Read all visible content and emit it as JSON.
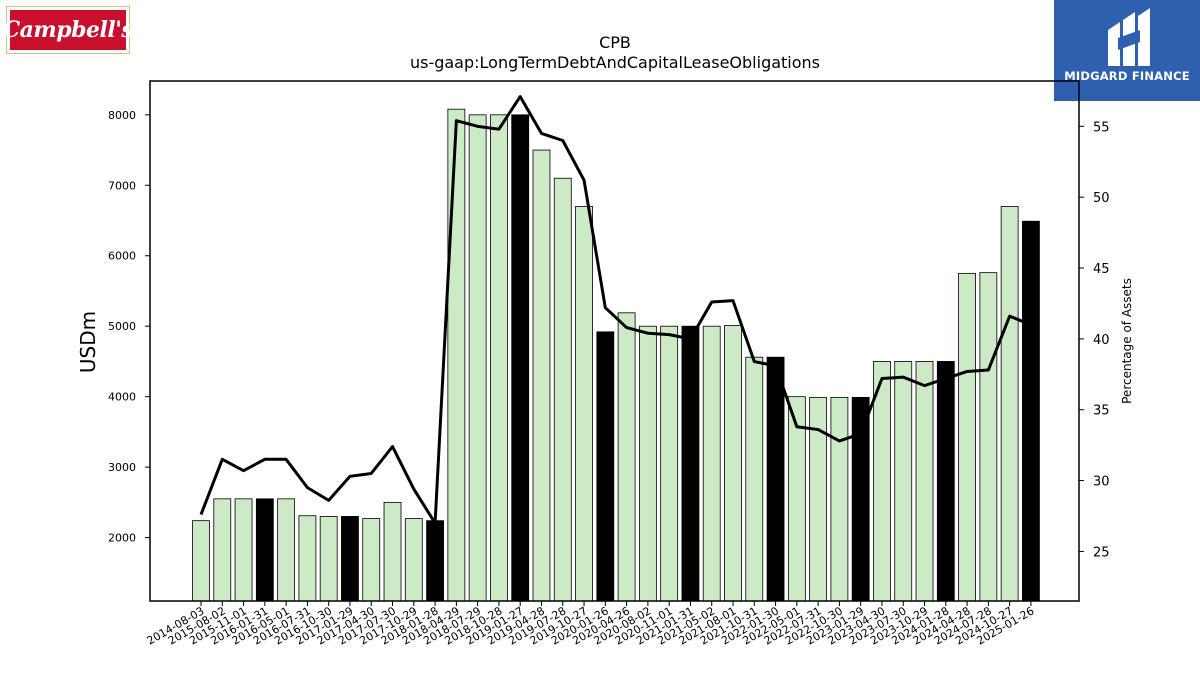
{
  "logos": {
    "left": "Campbell's",
    "right": "MIDGARD FINANCE"
  },
  "chart_data": {
    "type": "bar",
    "title": "CPB",
    "subtitle": "us-gaap:LongTermDebtAndCapitalLeaseObligations",
    "ylabel": "USDm",
    "y2label": "Percentage of Assets",
    "ylim": [
      1100,
      8480
    ],
    "y2lim": [
      21.5,
      58.2
    ],
    "yticks": [
      2000,
      3000,
      4000,
      5000,
      6000,
      7000,
      8000
    ],
    "y2ticks": [
      25,
      30,
      35,
      40,
      45,
      50,
      55
    ],
    "categories": [
      "2014-08-03",
      "2015-08-02",
      "2015-11-01",
      "2016-01-31",
      "2016-05-01",
      "2016-07-31",
      "2016-10-30",
      "2017-01-29",
      "2017-04-30",
      "2017-07-30",
      "2017-10-29",
      "2018-01-28",
      "2018-04-29",
      "2018-07-29",
      "2018-10-28",
      "2019-01-27",
      "2019-04-28",
      "2019-07-28",
      "2019-10-27",
      "2020-01-26",
      "2020-04-26",
      "2020-08-02",
      "2020-11-01",
      "2021-01-31",
      "2021-05-02",
      "2021-08-01",
      "2021-10-31",
      "2022-01-30",
      "2022-05-01",
      "2022-07-31",
      "2022-10-30",
      "2023-01-29",
      "2023-04-30",
      "2023-07-30",
      "2023-10-29",
      "2024-01-28",
      "2024-04-28",
      "2024-07-28",
      "2024-10-27",
      "2025-01-26"
    ],
    "series": [
      {
        "type": "bar",
        "values": [
          2240,
          2550,
          2550,
          2550,
          2550,
          2310,
          2300,
          2300,
          2270,
          2500,
          2270,
          2240,
          8080,
          8000,
          8000,
          8000,
          7500,
          7100,
          6700,
          4920,
          5190,
          5000,
          5000,
          5000,
          5000,
          5010,
          4560,
          4560,
          4000,
          3990,
          3990,
          3990,
          4500,
          4500,
          4500,
          4500,
          5750,
          5760,
          6700,
          6490
        ],
        "highlight": [
          false,
          false,
          false,
          true,
          false,
          false,
          false,
          true,
          false,
          false,
          false,
          true,
          false,
          false,
          false,
          true,
          false,
          false,
          false,
          true,
          false,
          false,
          false,
          true,
          false,
          false,
          false,
          true,
          false,
          false,
          false,
          true,
          false,
          false,
          false,
          true,
          false,
          false,
          false,
          true
        ],
        "color": "#cdeac7",
        "highlight_color": "#000000"
      },
      {
        "type": "line",
        "axis": "right",
        "values": [
          27.6,
          31.5,
          30.7,
          31.5,
          31.5,
          29.5,
          28.6,
          30.3,
          30.5,
          32.4,
          29.4,
          27.0,
          55.4,
          55.0,
          54.8,
          57.1,
          54.5,
          54.0,
          51.2,
          42.2,
          40.8,
          40.4,
          40.3,
          40.0,
          42.6,
          42.7,
          38.4,
          38.1,
          33.8,
          33.6,
          32.8,
          33.3,
          37.2,
          37.3,
          36.7,
          37.2,
          37.7,
          37.8,
          41.6,
          41.0
        ],
        "color": "#000000"
      }
    ],
    "grid": false,
    "legend": "none"
  }
}
